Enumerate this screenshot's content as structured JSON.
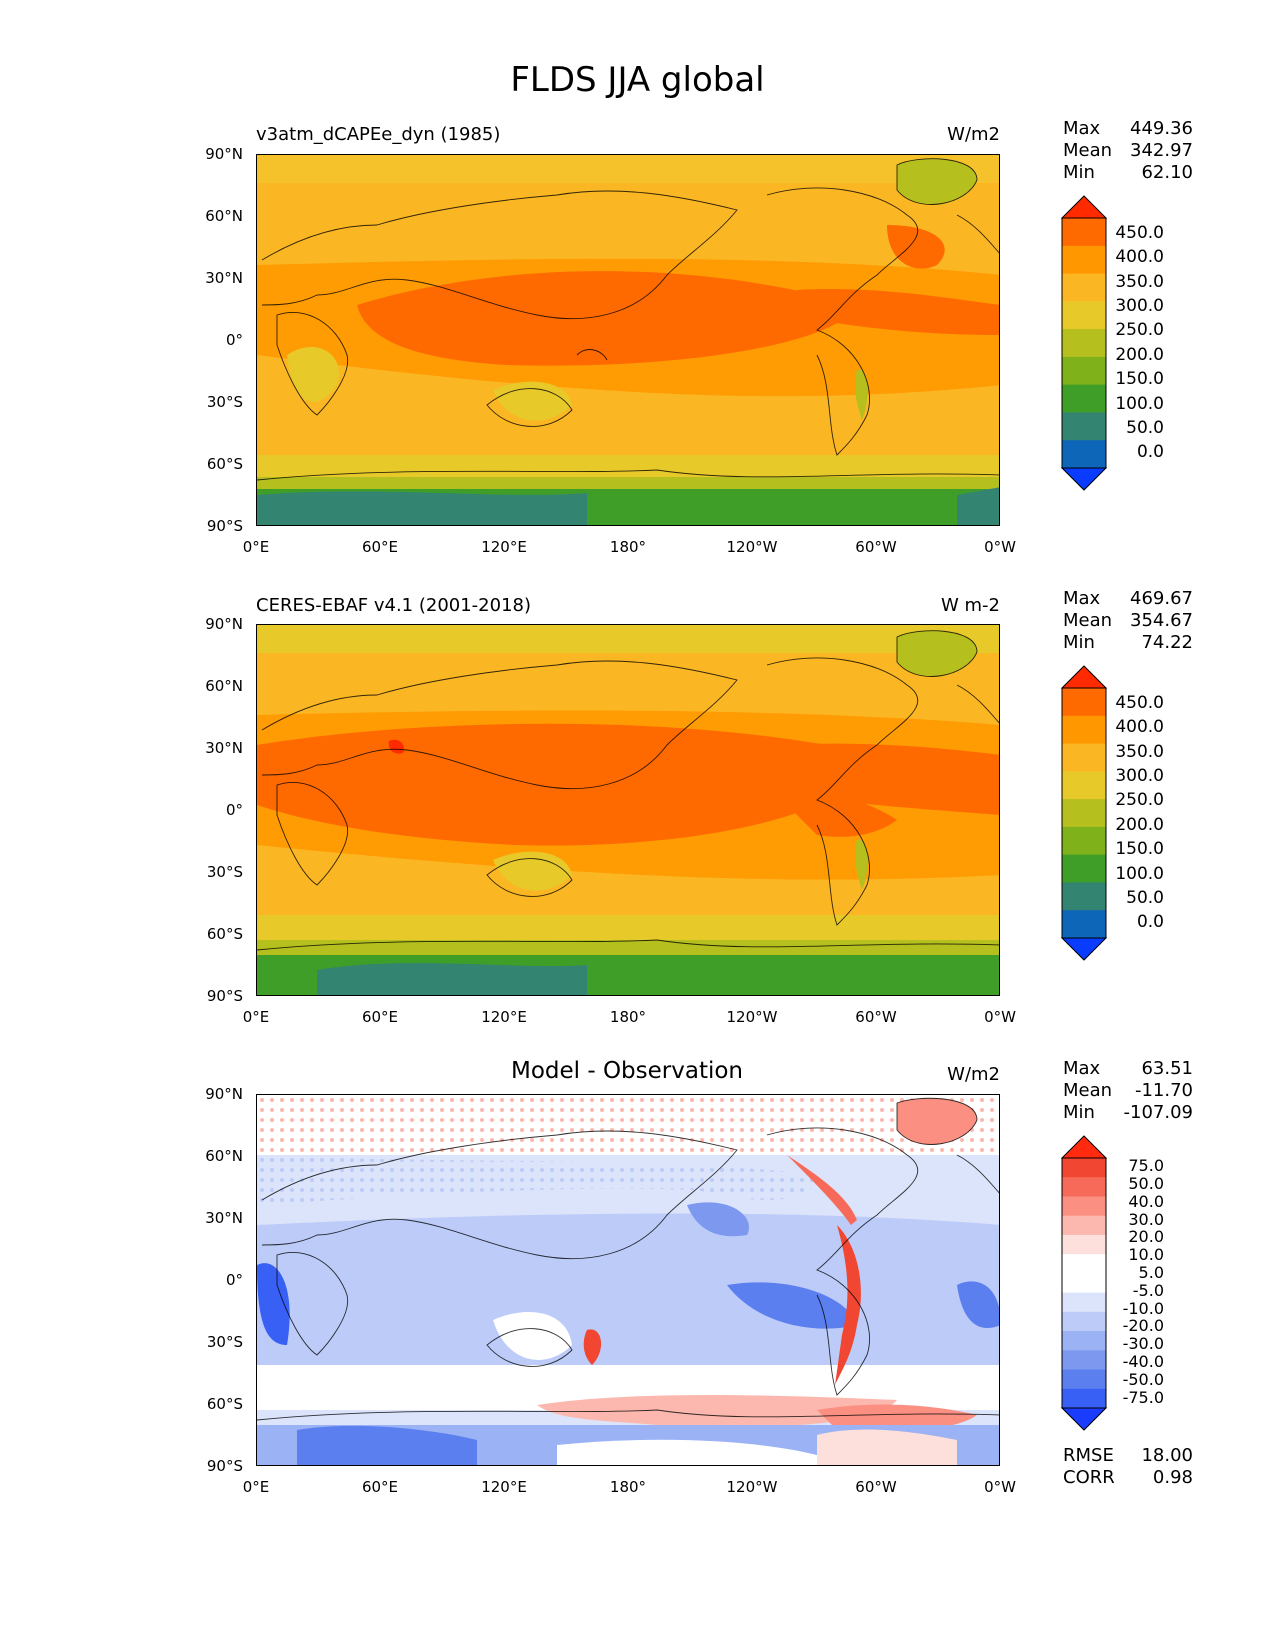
{
  "figure": {
    "title": "FLDS JJA global"
  },
  "axes": {
    "lat_labels": [
      "90°N",
      "60°N",
      "30°N",
      "0°",
      "30°S",
      "60°S",
      "90°S"
    ],
    "lon_labels": [
      "0°E",
      "60°E",
      "120°E",
      "180°",
      "120°W",
      "60°W",
      "0°W"
    ]
  },
  "panels": [
    {
      "id": "model",
      "left_label": "v3atm_dCAPEe_dyn (1985)",
      "center_title": "",
      "units": "W/m2",
      "stats": [
        {
          "label": "Max",
          "value": "449.36"
        },
        {
          "label": "Mean",
          "value": "342.97"
        },
        {
          "label": "Min",
          "value": "62.10"
        }
      ],
      "colorbar_labels": [
        "450.0",
        "400.0",
        "350.0",
        "300.0",
        "250.0",
        "200.0",
        "150.0",
        "100.0",
        "50.0",
        "0.0"
      ]
    },
    {
      "id": "obs",
      "left_label": "CERES-EBAF v4.1 (2001-2018)",
      "center_title": "",
      "units": "W m-2",
      "stats": [
        {
          "label": "Max",
          "value": "469.67"
        },
        {
          "label": "Mean",
          "value": "354.67"
        },
        {
          "label": "Min",
          "value": "74.22"
        }
      ],
      "colorbar_labels": [
        "450.0",
        "400.0",
        "350.0",
        "300.0",
        "250.0",
        "200.0",
        "150.0",
        "100.0",
        "50.0",
        "0.0"
      ]
    },
    {
      "id": "diff",
      "left_label": "",
      "center_title": "Model - Observation",
      "units": "W/m2",
      "stats": [
        {
          "label": "Max",
          "value": "63.51"
        },
        {
          "label": "Mean",
          "value": "-11.70"
        },
        {
          "label": "Min",
          "value": "-107.09"
        }
      ],
      "colorbar_labels": [
        "75.0",
        "50.0",
        "40.0",
        "30.0",
        "20.0",
        "10.0",
        "5.0",
        "-5.0",
        "-10.0",
        "-20.0",
        "-30.0",
        "-40.0",
        "-50.0",
        "-75.0"
      ],
      "metrics": [
        {
          "label": "RMSE",
          "value": "18.00"
        },
        {
          "label": "CORR",
          "value": "0.98"
        }
      ]
    }
  ],
  "colors": {
    "abs_scale": [
      "#ff2a00",
      "#ff6a00",
      "#ff9800",
      "#fbb623",
      "#e8c92a",
      "#b5bf1e",
      "#7fb11b",
      "#3f9e28",
      "#338470",
      "#0d66b8",
      "#0a3cff"
    ],
    "diff_scale": [
      "#ff2a10",
      "#f04632",
      "#f76a5a",
      "#fa8f82",
      "#fcb8ae",
      "#fde0db",
      "#ffffff",
      "#ffffff",
      "#dce4fb",
      "#bccbf8",
      "#9bb2f4",
      "#7c98ef",
      "#5c7ff0",
      "#3860f5",
      "#1a3cff"
    ]
  }
}
